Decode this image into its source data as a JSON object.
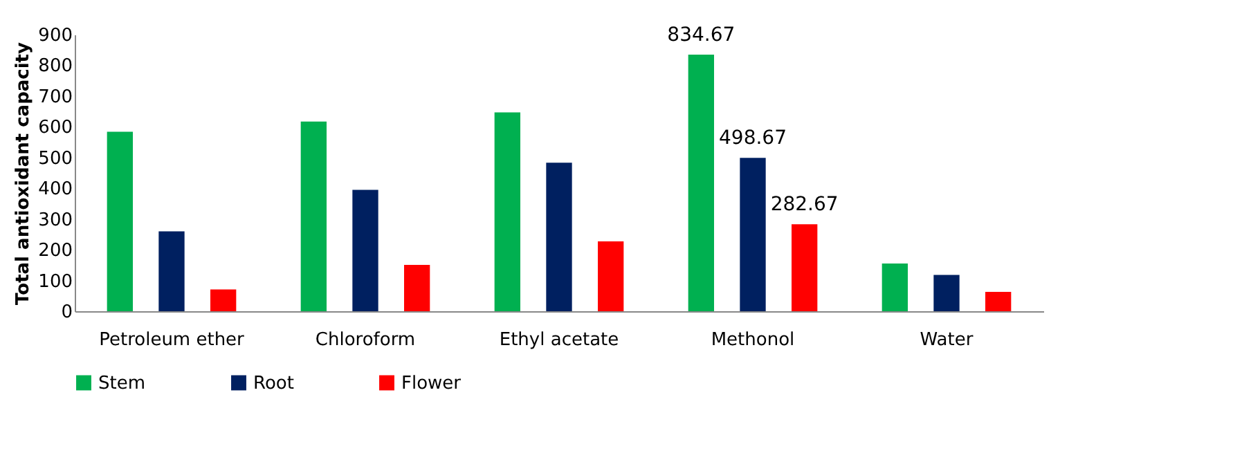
{
  "chart_data": {
    "type": "bar",
    "ylabel": "Total antioxidant capacity",
    "categories": [
      "Petroleum ether",
      "Chloroform",
      "Ethyl acetate",
      "Methonol",
      "Water"
    ],
    "series": [
      {
        "name": "Stem",
        "color": "#00b050",
        "values": [
          584,
          617,
          647,
          834.67,
          155
        ],
        "value_labels": [
          null,
          null,
          null,
          "834.67",
          null
        ]
      },
      {
        "name": "Root",
        "color": "#002060",
        "values": [
          260,
          395,
          483,
          498.67,
          118
        ],
        "value_labels": [
          null,
          null,
          null,
          "498.67",
          null
        ]
      },
      {
        "name": "Flower",
        "color": "#ff0000",
        "values": [
          71,
          151,
          227,
          282.67,
          63
        ],
        "value_labels": [
          null,
          null,
          null,
          "282.67",
          null
        ]
      }
    ],
    "ylim": [
      0,
      900
    ],
    "yticks": [
      0,
      100,
      200,
      300,
      400,
      500,
      600,
      700,
      800,
      900
    ],
    "grid": false,
    "legend": "bottom"
  }
}
